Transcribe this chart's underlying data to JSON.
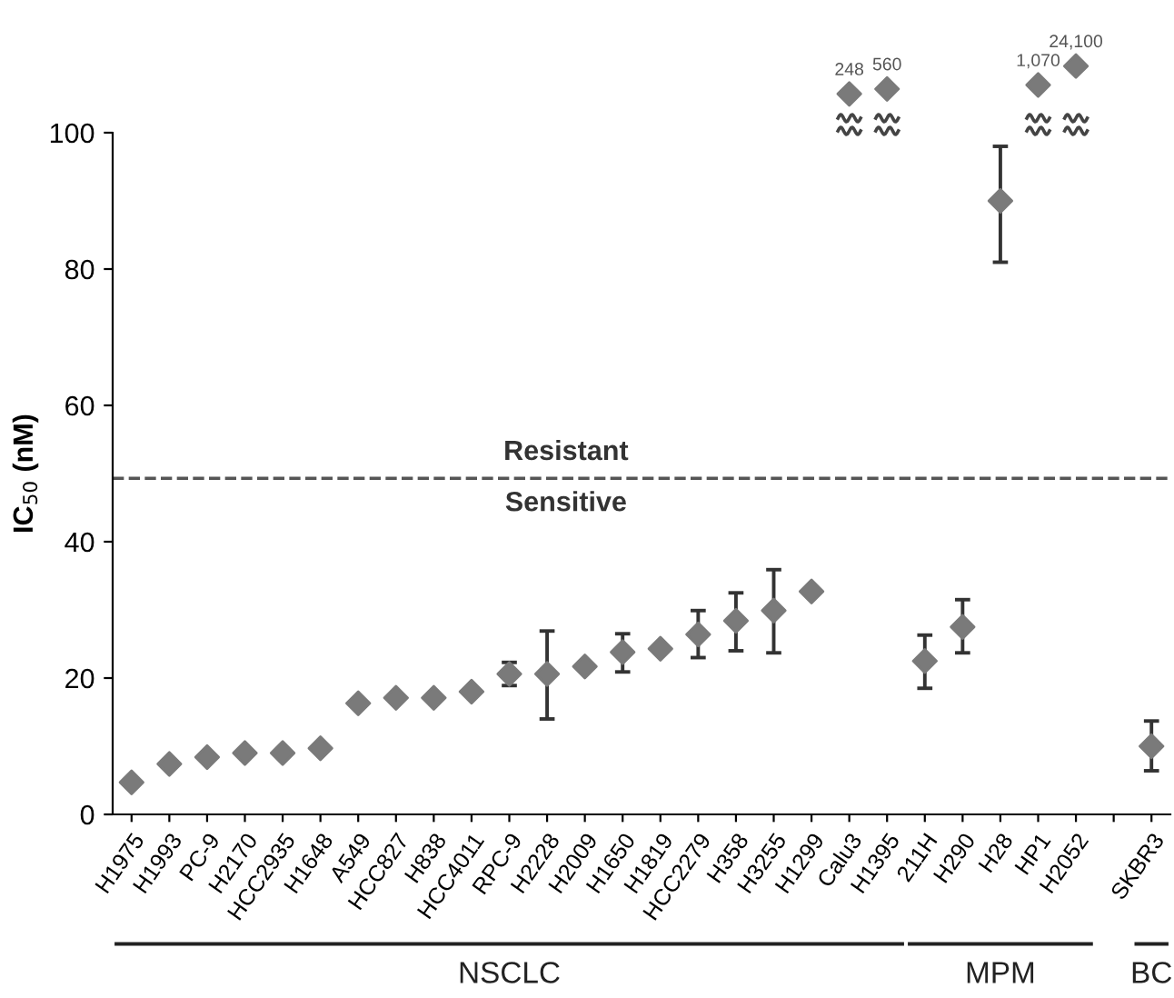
{
  "chart_data": [
    {
      "type": "scatter",
      "ylabel": "IC$_{50}$ (nM)",
      "categories": [
        "H1975",
        "H1993",
        "PC-9",
        "H2170",
        "HCC2935",
        "H1648",
        "A549",
        "HCC827",
        "H838",
        "HCC4011",
        "RPC-9",
        "H2228",
        "H2009",
        "H1650",
        "H1819",
        "HCC2279",
        "H358",
        "H3255",
        "H1299",
        "Calu3",
        "H1395",
        "211H",
        "H290",
        "H28",
        "HP1",
        "H2052",
        null,
        "SKBR3"
      ],
      "series": [
        {
          "color": "#7a7a7a",
          "values": [
            4.7,
            7.4,
            8.4,
            9.0,
            9.0,
            9.7,
            16.3,
            17.1,
            17.1,
            18.0,
            20.6,
            20.6,
            21.7,
            23.8,
            24.3,
            26.4,
            28.4,
            29.9,
            32.7,
            null,
            null,
            22.5,
            27.5,
            90,
            null,
            null,
            null,
            10.0
          ],
          "errors": [
            null,
            null,
            null,
            null,
            null,
            null,
            null,
            null,
            null,
            null,
            [
              18.9,
              22.3
            ],
            [
              14.0,
              26.9
            ],
            null,
            [
              20.9,
              26.5
            ],
            null,
            [
              23.0,
              29.9
            ],
            [
              24.0,
              32.5
            ],
            [
              23.7,
              35.9
            ],
            null,
            null,
            null,
            [
              18.5,
              26.3
            ],
            [
              23.7,
              31.5
            ],
            [
              81,
              98
            ],
            null,
            null,
            null,
            [
              6.4,
              13.7
            ]
          ]
        }
      ],
      "ylim": [
        0,
        100
      ],
      "yticks": [
        0,
        20,
        40,
        60,
        80,
        100
      ],
      "ref_lines": [
        {
          "axis": "y",
          "value": 49.3,
          "color": "#555555",
          "line_style": "dashed"
        }
      ],
      "annotations": [
        "Resistant",
        "Sensitive",
        "NSCLC",
        "MPM",
        "BC"
      ],
      "marker": "diamond",
      "grid": false,
      "legend": false
    },
    {
      "type": "scatter",
      "log": true,
      "tick_labels": false,
      "categories": [
        null,
        null,
        null,
        null,
        null,
        null,
        null,
        null,
        null,
        null,
        null,
        null,
        null,
        null,
        null,
        null,
        null,
        null,
        null,
        null,
        null,
        null,
        null,
        null,
        null,
        null,
        null,
        null
      ],
      "series": [
        {
          "color": "#7a7a7a",
          "values": [
            null,
            null,
            null,
            null,
            null,
            null,
            null,
            null,
            null,
            null,
            null,
            null,
            null,
            null,
            null,
            null,
            null,
            null,
            null,
            248,
            560,
            null,
            null,
            null,
            1070,
            24100,
            null,
            null
          ],
          "value_labels": [
            null,
            null,
            null,
            null,
            null,
            null,
            null,
            null,
            null,
            null,
            null,
            null,
            null,
            null,
            null,
            null,
            null,
            null,
            null,
            "248",
            "560",
            null,
            null,
            null,
            "1,070",
            "24,100",
            null,
            null
          ]
        }
      ],
      "marker": "diamond",
      "grid": false,
      "legend": false
    }
  ]
}
